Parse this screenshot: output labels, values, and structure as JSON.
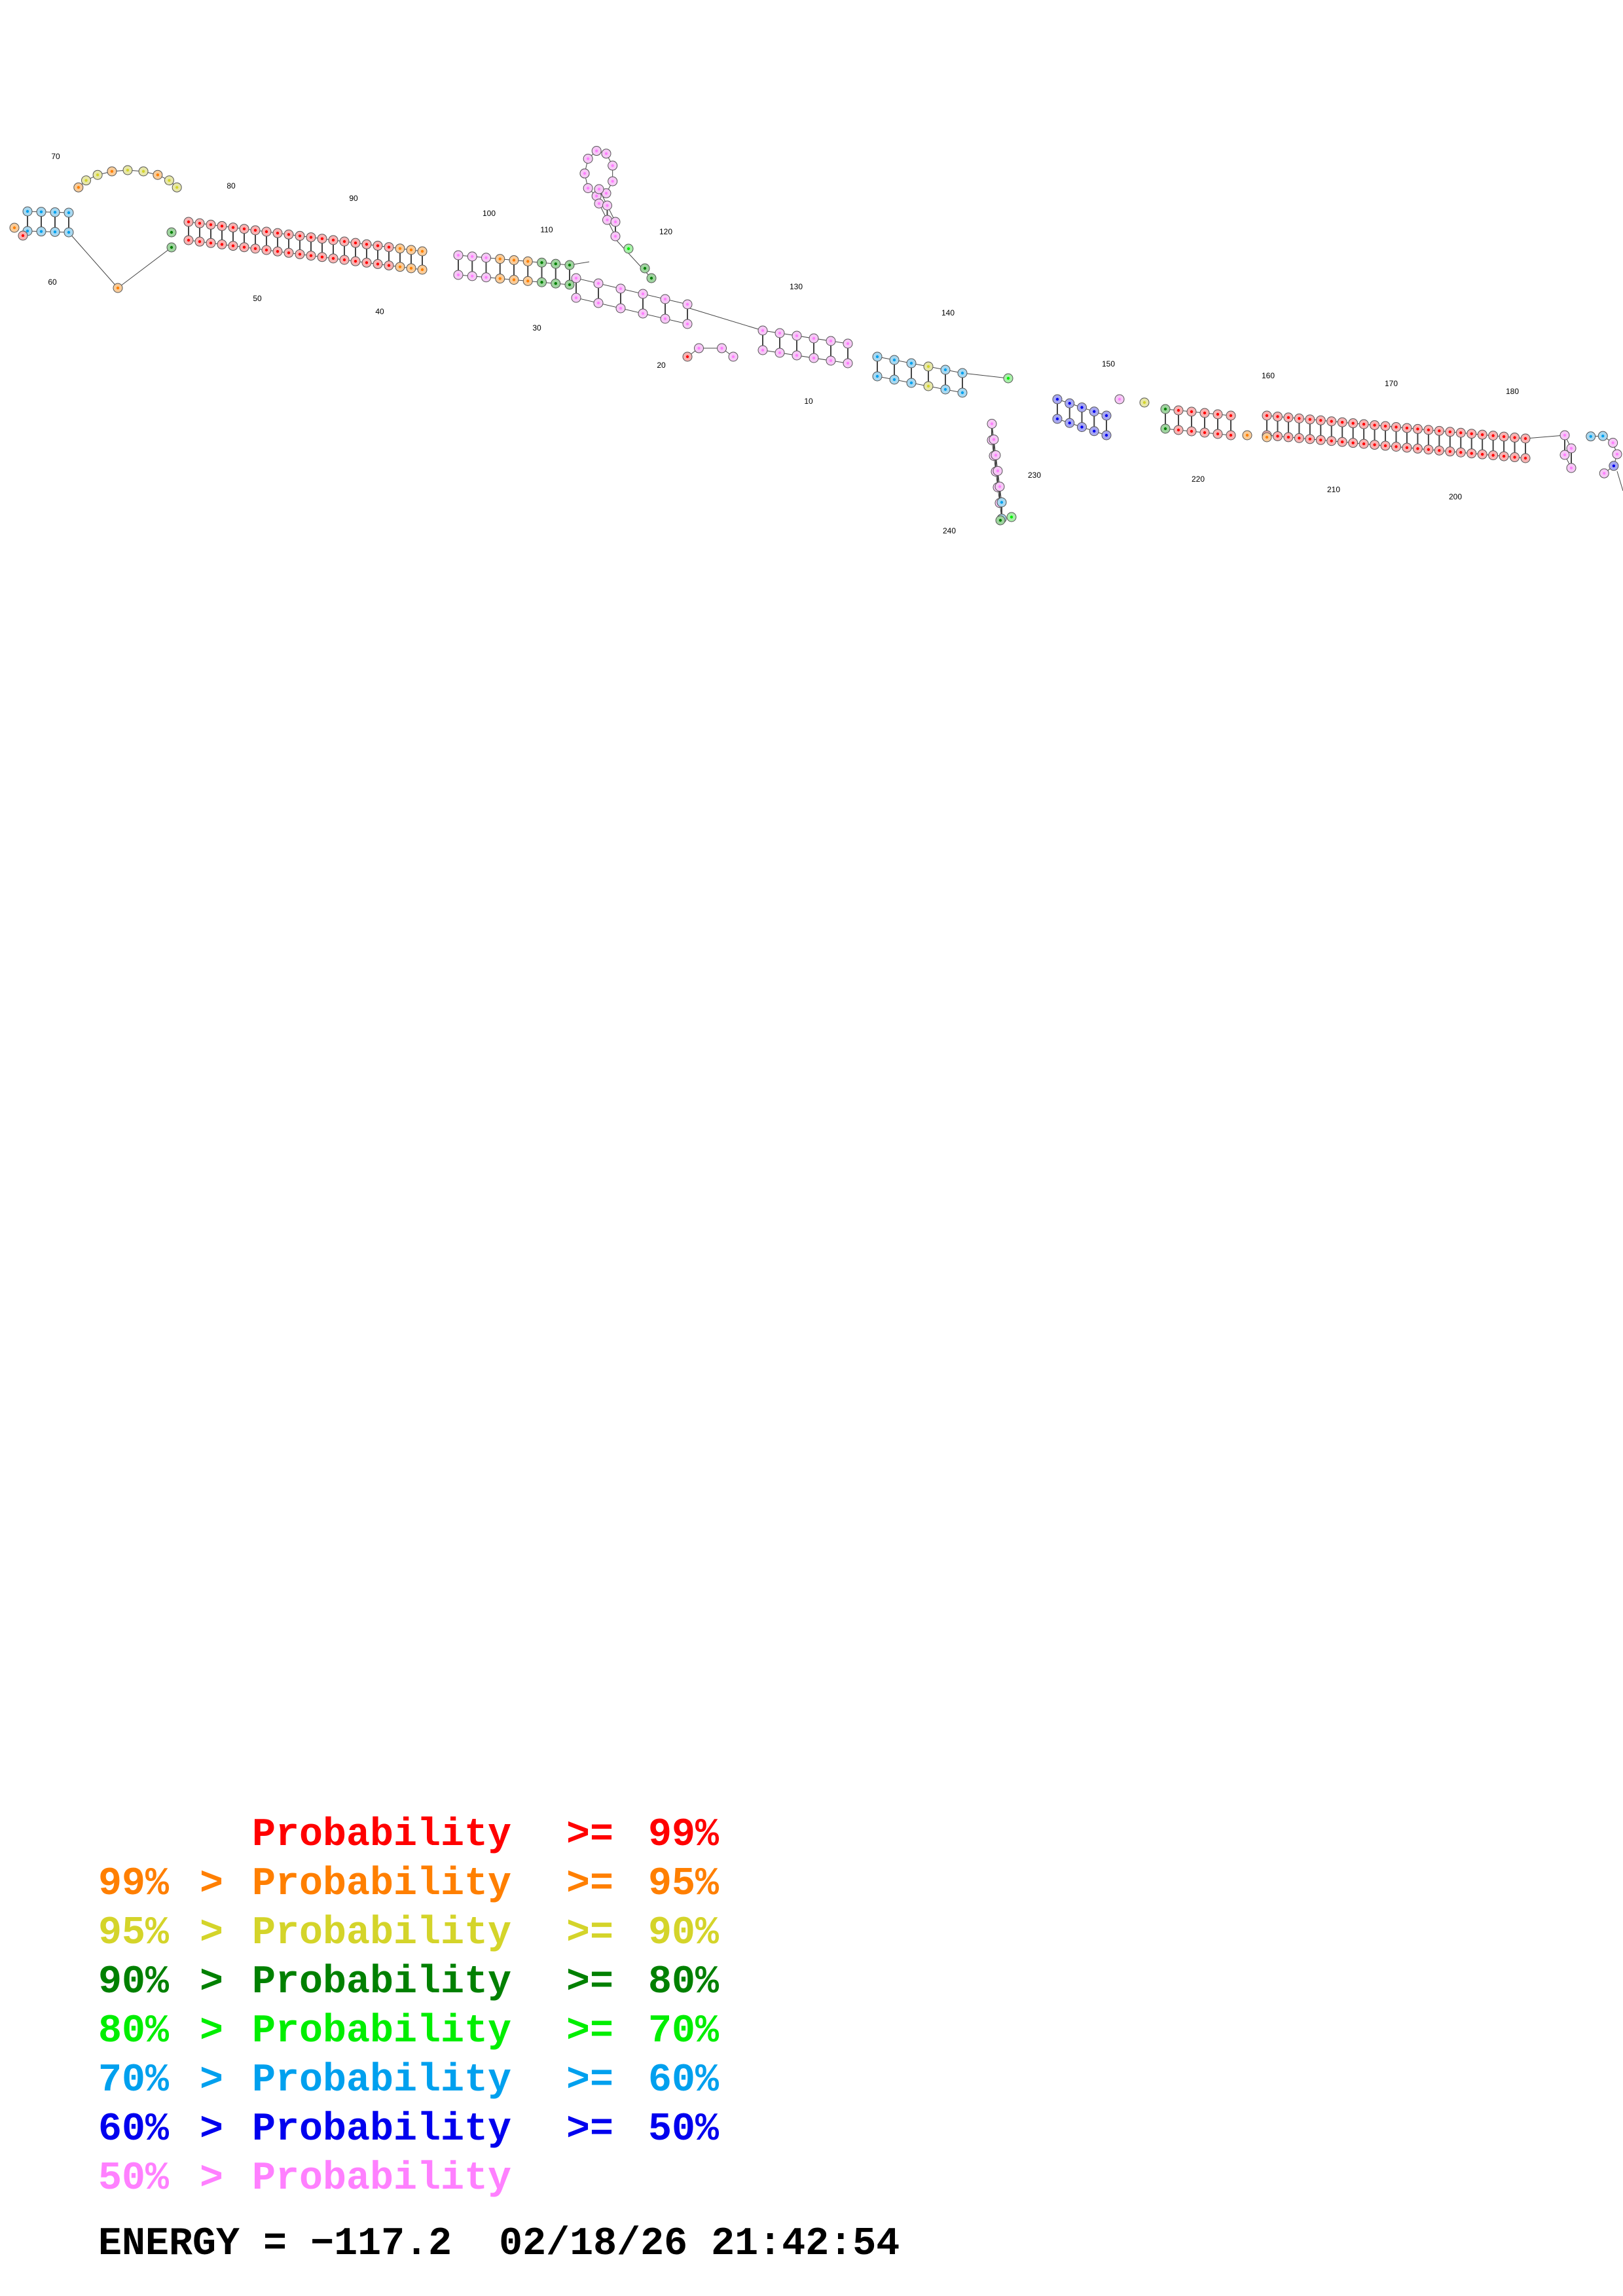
{
  "diagram": {
    "type": "rna-secondary-structure",
    "position_labels": [
      "10",
      "20",
      "30",
      "40",
      "50",
      "60",
      "70",
      "80",
      "90",
      "100",
      "110",
      "120",
      "130",
      "140",
      "150",
      "160",
      "170",
      "180",
      "200",
      "210",
      "220",
      "230",
      "240"
    ],
    "probability_colors": {
      "ge99": "#ff0000",
      "ge95": "#ff7f00",
      "ge90": "#d4d42a",
      "ge80": "#008000",
      "ge70": "#00ee00",
      "ge60": "#00a0ee",
      "ge50": "#0000ee",
      "lt50": "#ff80ff"
    }
  },
  "legend": {
    "rows": [
      {
        "low": "",
        "gt": "",
        "label": "Probability",
        "ge": ">=",
        "high": "99%",
        "color": "#ff0000"
      },
      {
        "low": "99%",
        "gt": ">",
        "label": "Probability",
        "ge": ">=",
        "high": "95%",
        "color": "#ff7f00"
      },
      {
        "low": "95%",
        "gt": ">",
        "label": "Probability",
        "ge": ">=",
        "high": "90%",
        "color": "#d4d42a"
      },
      {
        "low": "90%",
        "gt": ">",
        "label": "Probability",
        "ge": ">=",
        "high": "80%",
        "color": "#008000"
      },
      {
        "low": "80%",
        "gt": ">",
        "label": "Probability",
        "ge": ">=",
        "high": "70%",
        "color": "#00ee00"
      },
      {
        "low": "70%",
        "gt": ">",
        "label": "Probability",
        "ge": ">=",
        "high": "60%",
        "color": "#00a0ee"
      },
      {
        "low": "60%",
        "gt": ">",
        "label": "Probability",
        "ge": ">=",
        "high": "50%",
        "color": "#0000ee"
      },
      {
        "low": "50%",
        "gt": ">",
        "label": "Probability",
        "ge": "",
        "high": "",
        "color": "#ff80ff"
      }
    ]
  },
  "energy": {
    "label": "ENERGY = ",
    "value": "−117.2",
    "timestamp": "02/18/26 21:42:54"
  }
}
